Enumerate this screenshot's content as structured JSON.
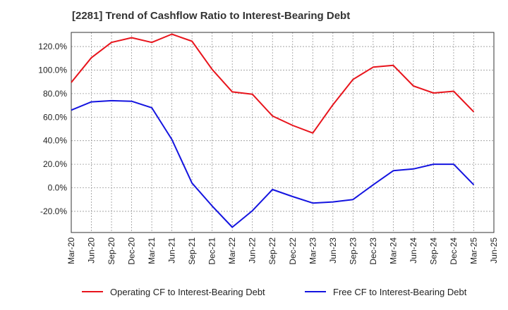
{
  "chart_data": {
    "type": "line",
    "title": "[2281]  Trend of Cashflow Ratio to Interest-Bearing Debt",
    "xlabel": "",
    "ylabel": "",
    "x_tick_labels": [
      "Mar-20",
      "Jun-20",
      "Sep-20",
      "Dec-20",
      "Mar-21",
      "Jun-21",
      "Sep-21",
      "Dec-21",
      "Mar-22",
      "Jun-22",
      "Sep-22",
      "Dec-22",
      "Mar-23",
      "Jun-23",
      "Sep-23",
      "Dec-23",
      "Mar-24",
      "Jun-24",
      "Sep-24",
      "Dec-24",
      "Mar-25",
      "Jun-25"
    ],
    "y_ticks": [
      -20,
      0,
      20,
      40,
      60,
      80,
      100,
      120
    ],
    "y_tick_labels": [
      "-20.0%",
      "0.0%",
      "20.0%",
      "40.0%",
      "60.0%",
      "80.0%",
      "100.0%",
      "120.0%"
    ],
    "ylim": [
      -38,
      132
    ],
    "grid": true,
    "legend_position": "bottom",
    "series": [
      {
        "name": "Operating CF to Interest-Bearing Debt",
        "color": "#e8141c",
        "x": [
          "Mar-20",
          "Jun-20",
          "Sep-20",
          "Dec-20",
          "Mar-21",
          "Jun-21",
          "Sep-21",
          "Dec-21",
          "Mar-22",
          "Jun-22",
          "Sep-22",
          "Dec-22",
          "Mar-23",
          "Jun-23",
          "Sep-23",
          "Dec-23",
          "Mar-24",
          "Jun-24",
          "Sep-24",
          "Dec-24",
          "Mar-25"
        ],
        "values": [
          89.5,
          110.5,
          123.5,
          127.5,
          123.5,
          130.5,
          124.5,
          100.5,
          81.5,
          79.5,
          61.0,
          53.0,
          46.5,
          70.5,
          92.0,
          102.5,
          104.0,
          86.5,
          80.5,
          82.0,
          64.5
        ]
      },
      {
        "name": "Free CF to Interest-Bearing Debt",
        "color": "#1414e0",
        "x": [
          "Mar-20",
          "Jun-20",
          "Sep-20",
          "Dec-20",
          "Mar-21",
          "Jun-21",
          "Sep-21",
          "Dec-21",
          "Mar-22",
          "Jun-22",
          "Sep-22",
          "Dec-22",
          "Mar-23",
          "Jun-23",
          "Sep-23",
          "Dec-23",
          "Mar-24",
          "Jun-24",
          "Sep-24",
          "Dec-24",
          "Mar-25"
        ],
        "values": [
          66.0,
          73.0,
          74.0,
          73.5,
          68.0,
          41.0,
          4.0,
          -15.5,
          -33.5,
          -19.5,
          -1.5,
          -7.5,
          -13.0,
          -12.0,
          -10.0,
          2.5,
          14.5,
          16.0,
          20.0,
          20.0,
          2.5
        ]
      }
    ]
  }
}
